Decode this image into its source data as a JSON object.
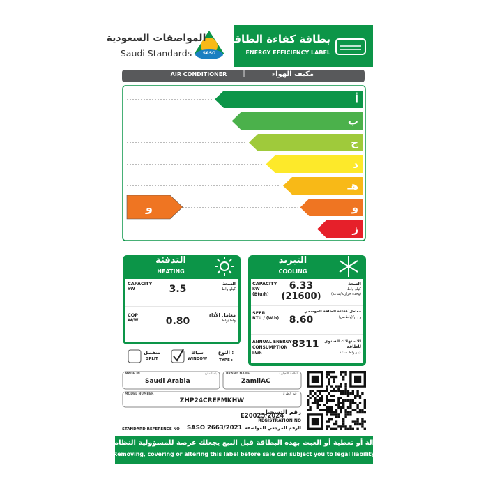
{
  "header": {
    "logo_ar": "المواصفات السعودية",
    "logo_en": "Saudi Standards",
    "logo_badge": "SASO",
    "title_ar": "بطاقة كفاءة الطاقة",
    "title_en": "ENERGY EFFICIENCY LABEL"
  },
  "product": {
    "en": "AIR CONDITIONER",
    "separator": "|",
    "ar": "مكيف الهواء"
  },
  "rating": {
    "classes": [
      {
        "label": "أ",
        "color": "#0c9548"
      },
      {
        "label": "ب",
        "color": "#4bb14b"
      },
      {
        "label": "ج",
        "color": "#9fca3b"
      },
      {
        "label": "د",
        "color": "#fde92a"
      },
      {
        "label": "هـ",
        "color": "#f8b917"
      },
      {
        "label": "و",
        "color": "#ef7522"
      },
      {
        "label": "ز",
        "color": "#e6202a"
      }
    ],
    "selected": {
      "label": "و",
      "color": "#ef7522"
    }
  },
  "heating": {
    "title_ar": "التدفئة",
    "title_en": "HEATING",
    "capacity_en": "CAPACITY",
    "capacity_unit": "kW",
    "capacity_ar": "السعة",
    "capacity_unit_ar": "كيلو واط",
    "capacity_value": "3.5",
    "cop_en": "COP",
    "cop_unit": "W/W",
    "cop_ar": "معامل الأداء",
    "cop_unit_ar": "واط/واط",
    "cop_value": "0.80"
  },
  "cooling": {
    "title_ar": "التبريد",
    "title_en": "COOLING",
    "capacity_en": "CAPACITY",
    "capacity_unit": "kW",
    "capacity_unit2": "(Btu/h)",
    "capacity_ar": "السعة",
    "capacity_unit_ar": "كيلو واط",
    "capacity_unit2_ar": "(وحدة حرارية/ساعة)",
    "capacity_value": "6.33",
    "capacity_value2": "(21600)",
    "seer_en": "SEER",
    "seer_unit": "BTU / (W.h)",
    "seer_ar": "معامل كفاءة الطاقة الموسمي",
    "seer_unit_ar": "وح ح/(واط.س)",
    "seer_value": "8.60",
    "annual_en1": "ANNUAL ENERGY",
    "annual_en2": "CONSUMPTION",
    "annual_unit": "kWh",
    "annual_ar1": "الاستهلاك السنوي",
    "annual_ar2": "للطاقة",
    "annual_unit_ar": "كيلو واط ساعة",
    "annual_value": "8311"
  },
  "type": {
    "split_ar": "منفصل",
    "split_en": "SPLIT",
    "window_ar": "شباك",
    "window_en": "WINDOW",
    "label_ar": "النوع :",
    "label_en": "TYPE :"
  },
  "details": {
    "made_in_en": "MADE IN",
    "made_in_ar": "بلد الصنع",
    "made_in": "Saudi Arabia",
    "brand_en": "BRAND NAME",
    "brand_ar": "العلامة التجارية",
    "brand": "ZamilAC",
    "model_en": "MODEL NUMBER",
    "model_ar": "رقم الطراز",
    "model": "ZHP24CREFMKHW",
    "registration_ar": "رقم التسجيل",
    "registration_en": "REGISTRATION NO",
    "registration": "E20025/2024",
    "standard_en": "STANDARD REFERENCE NO",
    "standard": "SASO 2663/2021",
    "standard_ar": "الرقم المرجعي للمواصفة"
  },
  "footer": {
    "ar": "إزالة أو تغطية أو العبث بهذه البطاقة قبل البيع يجعلك عرضة للمسؤولية النظامية",
    "en": "Removing, covering or altering this label before sale can subject you to legal liability"
  }
}
